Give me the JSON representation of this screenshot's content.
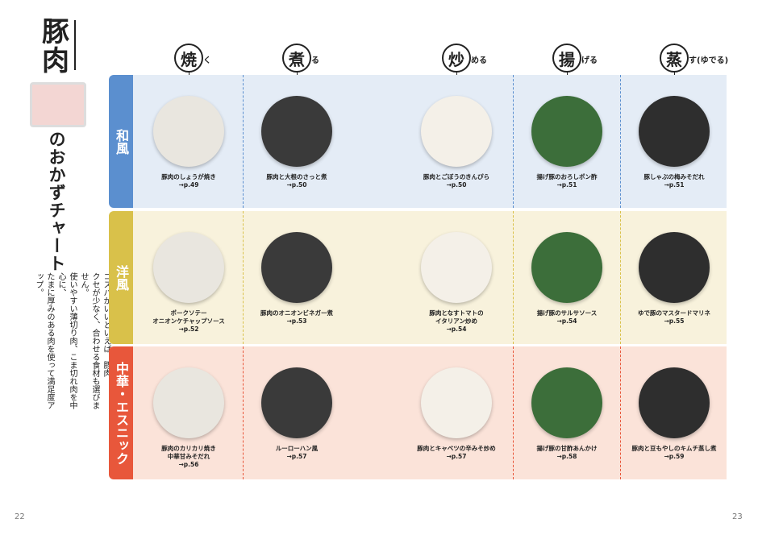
{
  "header": {
    "title": "豚肉",
    "subtitle": "のおかずチャート",
    "description": [
      "コスパがいいといえば、豚肉。",
      "クセが少なく、合わせる食材も選びません。",
      "使いやすい薄切り肉、こま切れ肉を中心に、",
      "たまに厚みのある肉を使って満足度アップ。"
    ]
  },
  "columns": [
    {
      "kanji": "焼",
      "kana": "く"
    },
    {
      "kanji": "煮",
      "kana": "る"
    },
    {
      "kanji": "炒",
      "kana": "める"
    },
    {
      "kanji": "揚",
      "kana": "げる"
    },
    {
      "kanji": "蒸",
      "kana": "す(ゆでる)"
    }
  ],
  "rows": [
    {
      "label": "和風",
      "dishes": [
        {
          "name": [
            "豚肉のしょうが焼き"
          ],
          "page": "→p.49"
        },
        {
          "name": [
            "豚肉と大根のさっと煮"
          ],
          "page": "→p.50"
        },
        {
          "name": [
            "豚肉とごぼうのきんぴら"
          ],
          "page": "→p.50"
        },
        {
          "name": [
            "揚げ豚のおろしポン酢"
          ],
          "page": "→p.51"
        },
        {
          "name": [
            "豚しゃぶの梅みそだれ"
          ],
          "page": "→p.51"
        }
      ]
    },
    {
      "label": "洋風",
      "dishes": [
        {
          "name": [
            "ポークソテー",
            "オニオンケチャップソース"
          ],
          "page": "→p.52"
        },
        {
          "name": [
            "豚肉のオニオンビネガー煮"
          ],
          "page": "→p.53"
        },
        {
          "name": [
            "豚肉となすトマトの",
            "イタリアン炒め"
          ],
          "page": "→p.54"
        },
        {
          "name": [
            "揚げ豚のサルサソース"
          ],
          "page": "→p.54"
        },
        {
          "name": [
            "ゆで豚のマスタードマリネ"
          ],
          "page": "→p.55"
        }
      ]
    },
    {
      "label": "中華・エスニック",
      "dishes": [
        {
          "name": [
            "豚肉のカリカリ焼き",
            "中華甘みそだれ"
          ],
          "page": "→p.56"
        },
        {
          "name": [
            "ルーローハン風"
          ],
          "page": "→p.57"
        },
        {
          "name": [
            "豚肉とキャベツの辛みそ炒め"
          ],
          "page": "→p.57"
        },
        {
          "name": [
            "揚げ豚の甘酢あんかけ"
          ],
          "page": "→p.58"
        },
        {
          "name": [
            "豚肉と豆もやしのキムチ蒸し煮"
          ],
          "page": "→p.59"
        }
      ]
    }
  ],
  "footer": {
    "left_page": "22",
    "right_page": "23"
  }
}
